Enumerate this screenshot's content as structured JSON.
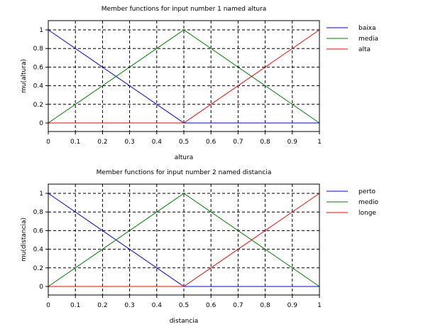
{
  "chart_data": [
    {
      "type": "line",
      "title": "Member functions for input number 1 named altura",
      "xlabel": "altura",
      "ylabel": "mu(altura)",
      "xlim": [
        0,
        1
      ],
      "ylim": [
        0,
        1
      ],
      "x_ticks": [
        "0",
        "0.1",
        "0.2",
        "0.3",
        "0.4",
        "0.5",
        "0.6",
        "0.7",
        "0.8",
        "0.9",
        "1"
      ],
      "y_ticks": [
        "0",
        "0.2",
        "0.4",
        "0.6",
        "0.8",
        "1"
      ],
      "grid": true,
      "legend_position": "right",
      "series": [
        {
          "name": "baixa",
          "color": "#0000ff",
          "x": [
            0,
            0.5,
            1
          ],
          "y": [
            1,
            0,
            0
          ]
        },
        {
          "name": "media",
          "color": "#008000",
          "x": [
            0,
            0.5,
            1
          ],
          "y": [
            0,
            1,
            0
          ]
        },
        {
          "name": "alta",
          "color": "#ff0000",
          "x": [
            0,
            0.5,
            1
          ],
          "y": [
            0,
            0,
            1
          ]
        }
      ]
    },
    {
      "type": "line",
      "title": "Member functions for input number 2 named distancia",
      "xlabel": "distancia",
      "ylabel": "mu(distancia)",
      "xlim": [
        0,
        1
      ],
      "ylim": [
        0,
        1
      ],
      "x_ticks": [
        "0",
        "0.1",
        "0.2",
        "0.3",
        "0.4",
        "0.5",
        "0.6",
        "0.7",
        "0.8",
        "0.9",
        "1"
      ],
      "y_ticks": [
        "0",
        "0.2",
        "0.4",
        "0.6",
        "0.8",
        "1"
      ],
      "grid": true,
      "legend_position": "right",
      "series": [
        {
          "name": "perto",
          "color": "#0000ff",
          "x": [
            0,
            0.5,
            1
          ],
          "y": [
            1,
            0,
            0
          ]
        },
        {
          "name": "medio",
          "color": "#008000",
          "x": [
            0,
            0.5,
            1
          ],
          "y": [
            0,
            1,
            0
          ]
        },
        {
          "name": "longe",
          "color": "#ff0000",
          "x": [
            0,
            0.5,
            1
          ],
          "y": [
            0,
            0,
            1
          ]
        }
      ]
    }
  ]
}
